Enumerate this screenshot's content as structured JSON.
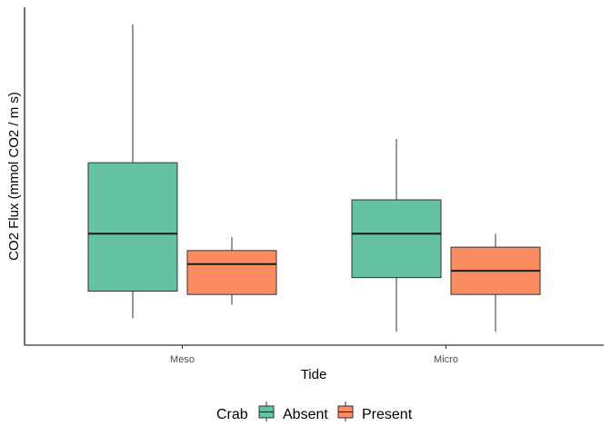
{
  "chart_data": {
    "type": "boxplot",
    "title": "",
    "xlabel": "Tide",
    "ylabel": "CO2 Flux (mmol CO2 / m s)",
    "categories": [
      "Meso",
      "Micro"
    ],
    "y_ticks_shown": false,
    "ylim": [
      0,
      100
    ],
    "grid": false,
    "legend": {
      "title": "Crab",
      "position": "bottom",
      "entries": [
        "Absent",
        "Present"
      ]
    },
    "series": [
      {
        "name": "Absent",
        "color": "#66c2a5",
        "boxes": [
          {
            "category": "Meso",
            "min": 8,
            "q1": 16,
            "median": 33,
            "q3": 54,
            "max": 95
          },
          {
            "category": "Micro",
            "min": 4,
            "q1": 20,
            "median": 33,
            "q3": 43,
            "max": 61
          }
        ]
      },
      {
        "name": "Present",
        "color": "#fc8d62",
        "boxes": [
          {
            "category": "Meso",
            "min": 12,
            "q1": 15,
            "median": 24,
            "q3": 28,
            "max": 32
          },
          {
            "category": "Micro",
            "min": 4,
            "q1": 15,
            "median": 22,
            "q3": 29,
            "max": 33
          }
        ]
      }
    ]
  }
}
